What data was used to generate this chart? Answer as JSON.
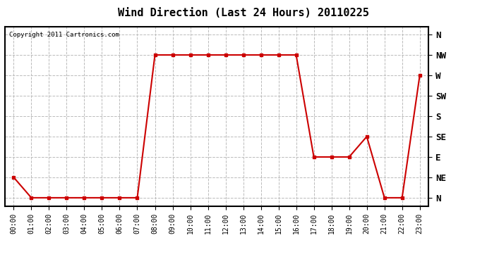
{
  "title": "Wind Direction (Last 24 Hours) 20110225",
  "copyright": "Copyright 2011 Cartronics.com",
  "x_labels": [
    "00:00",
    "01:00",
    "02:00",
    "03:00",
    "04:00",
    "05:00",
    "06:00",
    "07:00",
    "08:00",
    "09:00",
    "10:00",
    "11:00",
    "12:00",
    "13:00",
    "14:00",
    "15:00",
    "16:00",
    "17:00",
    "18:00",
    "19:00",
    "20:00",
    "21:00",
    "22:00",
    "23:00"
  ],
  "y_ticks_labels": [
    "N",
    "NE",
    "E",
    "SE",
    "S",
    "SW",
    "W",
    "NW",
    "N"
  ],
  "y_ticks_values": [
    0,
    1,
    2,
    3,
    4,
    5,
    6,
    7,
    8
  ],
  "wind_data": [
    [
      0,
      1
    ],
    [
      1,
      0
    ],
    [
      2,
      0
    ],
    [
      3,
      0
    ],
    [
      4,
      0
    ],
    [
      5,
      0
    ],
    [
      6,
      0
    ],
    [
      7,
      0
    ],
    [
      8,
      7
    ],
    [
      9,
      7
    ],
    [
      10,
      7
    ],
    [
      11,
      7
    ],
    [
      12,
      7
    ],
    [
      13,
      7
    ],
    [
      14,
      7
    ],
    [
      15,
      7
    ],
    [
      16,
      7
    ],
    [
      17,
      2
    ],
    [
      18,
      2
    ],
    [
      19,
      2
    ],
    [
      20,
      3
    ],
    [
      21,
      0
    ],
    [
      22,
      0
    ],
    [
      23,
      6
    ]
  ],
  "line_color": "#cc0000",
  "marker": "s",
  "marker_size": 3,
  "bg_color": "#ffffff",
  "plot_bg_color": "#ffffff",
  "grid_color": "#bbbbbb",
  "grid_style": "--",
  "title_fontsize": 11,
  "copyright_fontsize": 6.5,
  "tick_fontsize": 7,
  "y_tick_fontsize": 9
}
